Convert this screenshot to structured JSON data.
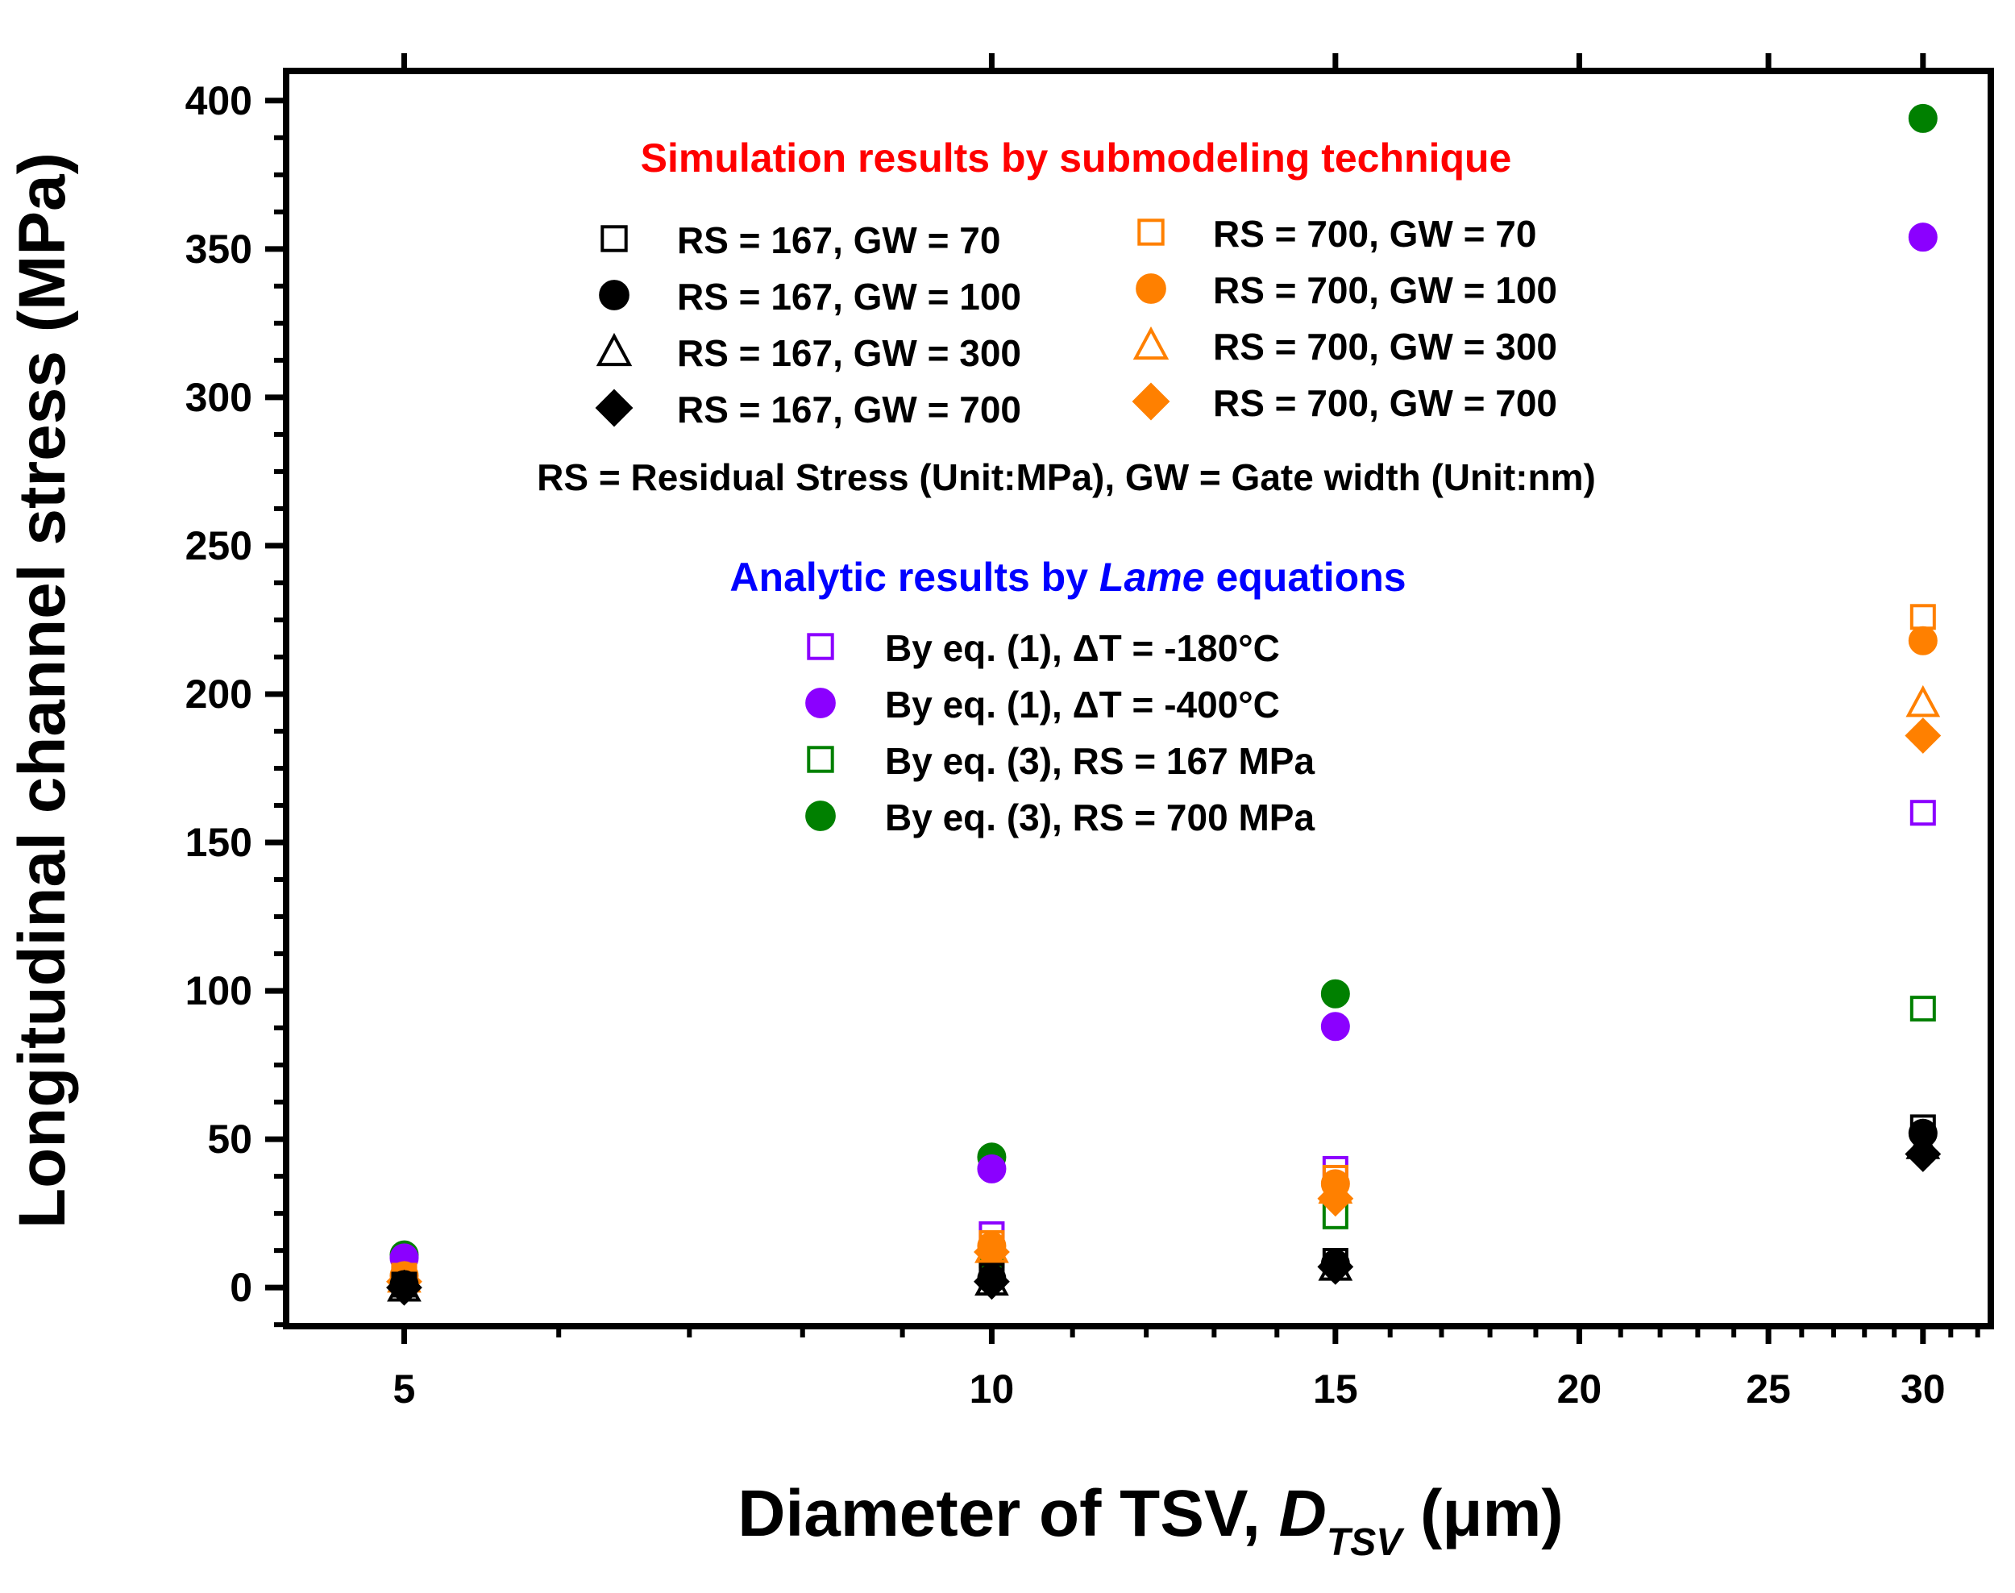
{
  "chart_data": {
    "type": "scatter",
    "x_scale": "log",
    "xlabel": {
      "main": "Diameter of TSV, ",
      "var": "D",
      "sub": "TSV",
      "unit": " (μm)"
    },
    "ylabel": "Longitudinal channel stress (MPa)",
    "xlim": [
      4.35,
      32.5
    ],
    "ylim": [
      -13,
      410
    ],
    "x_ticks": [
      5,
      10,
      15,
      20,
      25,
      30
    ],
    "x_tick_labels": [
      "5",
      "10",
      "15",
      "20",
      "25",
      "30"
    ],
    "x_minor_ticks": [
      6,
      7,
      8,
      9,
      11,
      12,
      13,
      14,
      16,
      17,
      18,
      19,
      21,
      22,
      23,
      24,
      26,
      27,
      28,
      29,
      31,
      32
    ],
    "y_ticks": [
      0,
      50,
      100,
      150,
      200,
      250,
      300,
      350,
      400
    ],
    "y_tick_labels": [
      "0",
      "50",
      "100",
      "150",
      "200",
      "250",
      "300",
      "350",
      "400"
    ],
    "y_minor_ticks": [
      -12.5,
      12.5,
      25,
      37.5,
      62.5,
      75,
      87.5,
      112.5,
      125,
      137.5,
      162.5,
      175,
      187.5,
      212.5,
      225,
      237.5,
      262.5,
      275,
      287.5,
      312.5,
      325,
      337.5,
      362.5,
      375,
      387.5
    ],
    "legend_groups": [
      {
        "title": "Simulation results by submodeling technique",
        "title_color": "#ff0000",
        "footnote": "RS = Residual Stress (Unit:MPa), GW = Gate width (Unit:nm)"
      },
      {
        "title_parts": [
          "Analytic results by ",
          "Lame",
          " equations"
        ],
        "title_color": "#0000ff"
      }
    ],
    "series": [
      {
        "name": "RS = 167, GW = 70",
        "marker": "square",
        "fill": false,
        "color": "#000000",
        "x": [
          5,
          10,
          15,
          30
        ],
        "y": [
          1,
          4,
          9,
          54
        ]
      },
      {
        "name": "RS = 167, GW = 100",
        "marker": "circle",
        "fill": true,
        "color": "#000000",
        "x": [
          5,
          10,
          15,
          30
        ],
        "y": [
          1,
          3,
          8,
          52
        ]
      },
      {
        "name": "RS = 167, GW = 300",
        "marker": "triangle",
        "fill": false,
        "color": "#000000",
        "x": [
          5,
          10,
          15,
          30
        ],
        "y": [
          0,
          2,
          7,
          48
        ]
      },
      {
        "name": "RS = 167, GW = 700",
        "marker": "diamond",
        "fill": true,
        "color": "#000000",
        "x": [
          5,
          10,
          15,
          30
        ],
        "y": [
          0,
          2,
          7,
          45
        ]
      },
      {
        "name": "RS = 700, GW = 70",
        "marker": "square",
        "fill": false,
        "color": "#ff8000",
        "x": [
          5,
          10,
          15,
          30
        ],
        "y": [
          4,
          15,
          37,
          226
        ]
      },
      {
        "name": "RS = 700, GW = 100",
        "marker": "circle",
        "fill": true,
        "color": "#ff8000",
        "x": [
          5,
          10,
          15,
          30
        ],
        "y": [
          4,
          14,
          35,
          218
        ]
      },
      {
        "name": "RS = 700, GW = 300",
        "marker": "triangle",
        "fill": false,
        "color": "#ff8000",
        "x": [
          5,
          10,
          15,
          30
        ],
        "y": [
          3,
          13,
          33,
          197
        ]
      },
      {
        "name": "RS = 700, GW = 700",
        "marker": "diamond",
        "fill": true,
        "color": "#ff8000",
        "x": [
          5,
          10,
          15,
          30
        ],
        "y": [
          2,
          12,
          30,
          186
        ]
      },
      {
        "name": "By eq. (1), ΔT = -180°C",
        "marker": "square",
        "fill": false,
        "color": "#8b00ff",
        "x": [
          5,
          10,
          15,
          30
        ],
        "y": [
          4,
          18,
          40,
          160
        ]
      },
      {
        "name": "By eq. (1), ΔT = -400°C",
        "marker": "circle",
        "fill": true,
        "color": "#8b00ff",
        "x": [
          5,
          10,
          15,
          30
        ],
        "y": [
          10,
          40,
          88,
          354
        ]
      },
      {
        "name": "By eq. (3), RS = 167 MPa",
        "marker": "square",
        "fill": false,
        "color": "#008000",
        "x": [
          5,
          10,
          15,
          30
        ],
        "y": [
          3,
          11,
          24,
          94
        ]
      },
      {
        "name": "By eq. (3), RS = 700 MPa",
        "marker": "circle",
        "fill": true,
        "color": "#008000",
        "x": [
          5,
          10,
          15,
          30
        ],
        "y": [
          11,
          44,
          99,
          394
        ]
      }
    ]
  }
}
